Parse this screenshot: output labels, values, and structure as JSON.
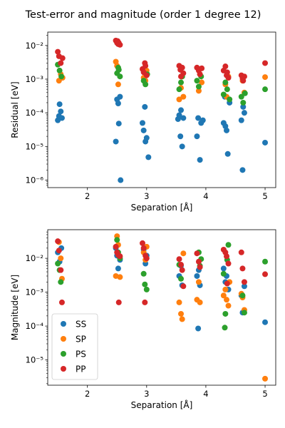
{
  "title": "Test-error and magnitude (order 1 degree 12)",
  "colors": {
    "SS": "#1f77b4",
    "SP": "#ff7f0e",
    "PS": "#2ca02c",
    "PP": "#d62728"
  },
  "chart_data": [
    {
      "type": "scatter",
      "xlabel": "Separation [Å]",
      "ylabel": "Residual [eV]",
      "xlim": [
        1.33,
        5.18
      ],
      "ylim": [
        6e-07,
        0.025
      ],
      "yscale": "log",
      "xticks": [
        "2",
        "3",
        "4",
        "5"
      ],
      "yticks": [
        "10⁻⁶",
        "10⁻⁵",
        "10⁻⁴",
        "10⁻³",
        "10⁻²"
      ],
      "series": [
        {
          "name": "SS",
          "x": [
            1.5,
            1.52,
            1.55,
            1.57,
            1.53,
            2.5,
            2.52,
            2.55,
            2.48,
            2.53,
            2.56,
            2.93,
            2.95,
            2.97,
            2.98,
            3.0,
            3.03,
            3.53,
            3.55,
            3.57,
            3.6,
            3.62,
            3.58,
            3.85,
            3.87,
            3.9,
            3.92,
            3.95,
            4.3,
            4.33,
            4.35,
            4.37,
            4.4,
            4.32,
            4.6,
            4.62,
            4.65,
            4.63,
            5.0
          ],
          "y": [
            6e-05,
            8e-05,
            0.00011,
            7e-05,
            0.00018,
            0.00025,
            0.00019,
            0.0003,
            1.4e-05,
            4.8e-05,
            1e-06,
            5e-05,
            3e-05,
            0.00015,
            1.4e-05,
            1.8e-05,
            4.8e-06,
            6.5e-05,
            8.5e-05,
            2e-05,
            1e-05,
            7e-05,
            0.00012,
            2e-05,
            7e-05,
            4e-06,
            5e-05,
            6e-05,
            5e-05,
            4e-05,
            3e-05,
            6e-06,
            0.0002,
            0.0003,
            6e-05,
            2e-06,
            0.0001,
            0.00015,
            1.3e-05
          ]
        },
        {
          "name": "SP",
          "x": [
            1.52,
            1.55,
            1.58,
            2.48,
            2.5,
            2.52,
            2.95,
            2.98,
            3.0,
            3.55,
            3.58,
            3.6,
            3.62,
            3.88,
            3.9,
            3.93,
            4.33,
            4.35,
            4.38,
            4.62,
            4.65,
            5.0
          ],
          "y": [
            0.0009,
            0.0014,
            0.0011,
            0.0033,
            0.0025,
            0.0007,
            0.0011,
            0.0009,
            0.0018,
            0.00025,
            0.00055,
            0.0012,
            0.0003,
            0.00045,
            0.0014,
            0.0008,
            0.0007,
            0.0003,
            0.0012,
            0.0009,
            0.0004,
            0.00115
          ]
        },
        {
          "name": "PS",
          "x": [
            1.5,
            1.53,
            1.56,
            2.5,
            2.52,
            2.55,
            2.53,
            2.95,
            2.98,
            3.01,
            3.55,
            3.58,
            3.6,
            3.85,
            3.88,
            3.92,
            4.3,
            4.33,
            4.36,
            4.4,
            4.6,
            4.63,
            4.66,
            5.0
          ],
          "y": [
            0.0027,
            0.0018,
            0.0012,
            0.0015,
            0.0022,
            0.0012,
            0.0019,
            0.0009,
            0.0007,
            0.0014,
            0.0005,
            0.0008,
            0.0012,
            0.0009,
            0.0006,
            0.0012,
            0.00035,
            0.0008,
            0.0005,
            0.00025,
            0.0003,
            0.0002,
            0.00038,
            0.0005
          ]
        },
        {
          "name": "PP",
          "x": [
            1.5,
            1.52,
            1.55,
            1.58,
            2.48,
            2.5,
            2.52,
            2.55,
            2.51,
            2.53,
            2.93,
            2.95,
            2.98,
            3.0,
            2.97,
            3.55,
            3.57,
            3.6,
            3.62,
            3.58,
            3.85,
            3.88,
            3.9,
            3.93,
            4.3,
            4.33,
            4.35,
            4.38,
            4.36,
            4.6,
            4.62,
            4.65,
            4.63,
            5.0
          ],
          "y": [
            0.0065,
            0.0048,
            0.003,
            0.0042,
            0.014,
            0.012,
            0.011,
            0.0105,
            0.0135,
            0.012,
            0.002,
            0.0016,
            0.0025,
            0.0013,
            0.003,
            0.0025,
            0.0019,
            0.0022,
            0.0015,
            0.0012,
            0.0022,
            0.0018,
            0.0014,
            0.0021,
            0.0018,
            0.0024,
            0.0013,
            0.0011,
            0.0016,
            0.0013,
            0.00105,
            0.0012,
            0.0009,
            0.003
          ]
        }
      ]
    },
    {
      "type": "scatter",
      "xlabel": "Separation [Å]",
      "ylabel": "Magnitude [eV]",
      "xlim": [
        1.33,
        5.18
      ],
      "ylim": [
        1.8e-06,
        0.07
      ],
      "yscale": "log",
      "xticks": [
        "2",
        "3",
        "4",
        "5"
      ],
      "yticks": [
        "10⁻⁵",
        "10⁻⁴",
        "10⁻³",
        "10⁻²"
      ],
      "legend": "lower-left",
      "series": [
        {
          "name": "SS",
          "x": [
            1.5,
            1.53,
            1.56,
            2.48,
            2.5,
            2.52,
            2.55,
            2.95,
            2.98,
            3.0,
            3.55,
            3.58,
            3.6,
            3.85,
            3.88,
            3.9,
            3.87,
            4.3,
            4.33,
            4.35,
            4.38,
            4.6,
            4.62,
            4.65,
            5.0
          ],
          "y": [
            0.015,
            0.008,
            0.02,
            0.02,
            0.012,
            0.005,
            0.009,
            0.018,
            0.007,
            0.012,
            0.003,
            0.006,
            0.0016,
            0.003,
            0.0045,
            0.0016,
            8.5e-05,
            0.005,
            0.002,
            0.003,
            0.0012,
            0.0008,
            0.00025,
            0.0015,
            0.00013
          ]
        },
        {
          "name": "SP",
          "x": [
            1.52,
            1.55,
            1.57,
            2.48,
            2.5,
            2.52,
            2.55,
            2.95,
            2.98,
            3.0,
            3.55,
            3.58,
            3.6,
            3.62,
            3.85,
            3.88,
            3.9,
            4.3,
            4.33,
            4.35,
            4.38,
            4.4,
            4.6,
            4.62,
            4.65,
            5.0
          ],
          "y": [
            0.03,
            0.01,
            0.0025,
            0.003,
            0.045,
            0.025,
            0.0028,
            0.015,
            0.009,
            0.022,
            0.0005,
            0.00023,
            0.00016,
            0.014,
            0.0006,
            0.002,
            0.0005,
            0.0008,
            0.0012,
            0.0006,
            0.0004,
            0.002,
            0.0009,
            0.0007,
            0.0003,
            2.8e-06
          ]
        },
        {
          "name": "PS",
          "x": [
            1.5,
            1.53,
            1.55,
            2.5,
            2.52,
            2.55,
            2.95,
            2.97,
            3.0,
            3.55,
            3.58,
            3.88,
            3.9,
            3.92,
            4.3,
            4.33,
            4.36,
            4.38,
            4.32,
            4.62,
            4.65,
            5.0
          ],
          "y": [
            0.007,
            0.0045,
            0.002,
            0.035,
            0.015,
            0.01,
            0.0035,
            0.0017,
            0.0012,
            0.0065,
            0.0025,
            0.015,
            0.006,
            0.0095,
            0.0035,
            0.00023,
            0.009,
            0.025,
            9e-05,
            0.0008,
            0.00025,
            0.008
          ]
        },
        {
          "name": "PP",
          "x": [
            1.5,
            1.52,
            1.55,
            1.57,
            2.48,
            2.5,
            2.52,
            2.55,
            2.53,
            2.93,
            2.95,
            2.98,
            3.0,
            2.97,
            3.55,
            3.58,
            3.6,
            3.62,
            3.85,
            3.88,
            3.9,
            4.3,
            4.33,
            4.35,
            4.38,
            4.36,
            4.6,
            4.62,
            4.65,
            5.0
          ],
          "y": [
            0.032,
            0.017,
            0.0045,
            0.0005,
            0.022,
            0.015,
            0.0125,
            0.0115,
            0.0005,
            0.028,
            0.02,
            0.012,
            0.01,
            0.0005,
            0.0095,
            0.0065,
            0.0045,
            0.0015,
            0.014,
            0.008,
            0.0055,
            0.018,
            0.015,
            0.0115,
            0.007,
            0.0018,
            0.015,
            0.005,
            0.002,
            0.0034
          ]
        }
      ]
    }
  ]
}
